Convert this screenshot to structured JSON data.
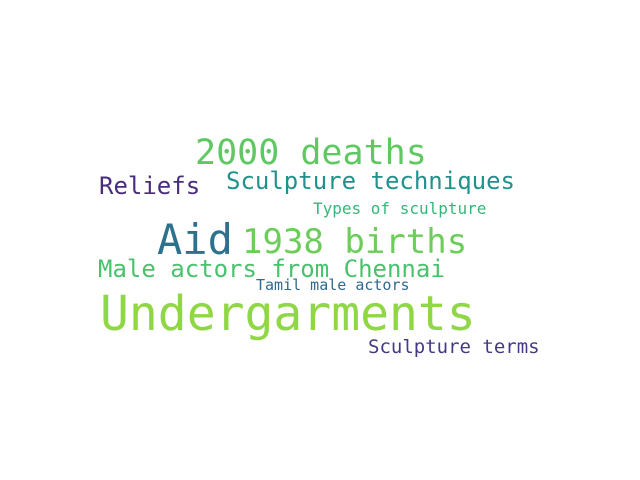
{
  "word_cloud": {
    "words": [
      {
        "id": "undergarments",
        "text": "Undergarments",
        "color": "#8fd744"
      },
      {
        "id": "2000-deaths",
        "text": "2000 deaths",
        "color": "#5ec962"
      },
      {
        "id": "aid",
        "text": "Aid",
        "color": "#2c728e"
      },
      {
        "id": "1938-births",
        "text": "1938 births",
        "color": "#6ccd5a"
      },
      {
        "id": "reliefs",
        "text": "Reliefs",
        "color": "#472d7b"
      },
      {
        "id": "sculpture-techniques",
        "text": "Sculpture techniques",
        "color": "#21918c"
      },
      {
        "id": "male-actors-from-chennai",
        "text": "Male actors from Chennai",
        "color": "#4ac16d"
      },
      {
        "id": "types-of-sculpture",
        "text": "Types of sculpture",
        "color": "#35b779"
      },
      {
        "id": "tamil-male-actors",
        "text": "Tamil male actors",
        "color": "#31688e"
      },
      {
        "id": "sculpture-terms",
        "text": "Sculpture terms",
        "color": "#443a83"
      }
    ]
  }
}
